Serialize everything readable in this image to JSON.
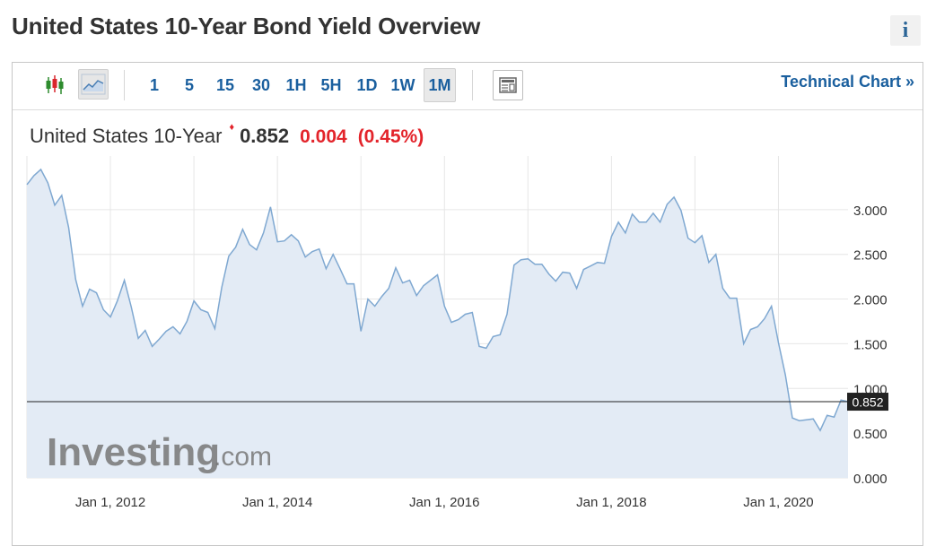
{
  "page": {
    "title": "United States 10-Year Bond Yield Overview",
    "info_icon": "i"
  },
  "toolbar": {
    "icons": [
      "candlestick-icon",
      "area-chart-icon",
      "news-panel-icon"
    ],
    "intervals": [
      "1",
      "5",
      "15",
      "30",
      "1H",
      "5H",
      "1D",
      "1W",
      "1M"
    ],
    "active_interval": "1M",
    "technical_chart_label": "Technical Chart »"
  },
  "quote": {
    "name": "United States 10-Year",
    "price": "0.852",
    "change": "0.004",
    "change_pct": "(0.45%)",
    "direction": "down"
  },
  "watermark": {
    "brand": "Investing",
    "suffix": ".com"
  },
  "chart_data": {
    "type": "area",
    "series": [
      {
        "values": [
          {
            "x": "2011-01",
            "y": 3.28
          },
          {
            "x": "2011-02",
            "y": 3.38
          },
          {
            "x": "2011-03",
            "y": 3.45
          },
          {
            "x": "2011-04",
            "y": 3.3
          },
          {
            "x": "2011-05",
            "y": 3.05
          },
          {
            "x": "2011-06",
            "y": 3.16
          },
          {
            "x": "2011-07",
            "y": 2.8
          },
          {
            "x": "2011-08",
            "y": 2.22
          },
          {
            "x": "2011-09",
            "y": 1.92
          },
          {
            "x": "2011-10",
            "y": 2.11
          },
          {
            "x": "2011-11",
            "y": 2.07
          },
          {
            "x": "2011-12",
            "y": 1.88
          },
          {
            "x": "2012-01",
            "y": 1.8
          },
          {
            "x": "2012-02",
            "y": 1.98
          },
          {
            "x": "2012-03",
            "y": 2.21
          },
          {
            "x": "2012-04",
            "y": 1.91
          },
          {
            "x": "2012-05",
            "y": 1.56
          },
          {
            "x": "2012-06",
            "y": 1.65
          },
          {
            "x": "2012-07",
            "y": 1.47
          },
          {
            "x": "2012-08",
            "y": 1.55
          },
          {
            "x": "2012-09",
            "y": 1.64
          },
          {
            "x": "2012-10",
            "y": 1.69
          },
          {
            "x": "2012-11",
            "y": 1.61
          },
          {
            "x": "2012-12",
            "y": 1.75
          },
          {
            "x": "2013-01",
            "y": 1.98
          },
          {
            "x": "2013-02",
            "y": 1.88
          },
          {
            "x": "2013-03",
            "y": 1.85
          },
          {
            "x": "2013-04",
            "y": 1.67
          },
          {
            "x": "2013-05",
            "y": 2.13
          },
          {
            "x": "2013-06",
            "y": 2.48
          },
          {
            "x": "2013-07",
            "y": 2.58
          },
          {
            "x": "2013-08",
            "y": 2.78
          },
          {
            "x": "2013-09",
            "y": 2.61
          },
          {
            "x": "2013-10",
            "y": 2.55
          },
          {
            "x": "2013-11",
            "y": 2.74
          },
          {
            "x": "2013-12",
            "y": 3.03
          },
          {
            "x": "2014-01",
            "y": 2.64
          },
          {
            "x": "2014-02",
            "y": 2.65
          },
          {
            "x": "2014-03",
            "y": 2.72
          },
          {
            "x": "2014-04",
            "y": 2.65
          },
          {
            "x": "2014-05",
            "y": 2.47
          },
          {
            "x": "2014-06",
            "y": 2.53
          },
          {
            "x": "2014-07",
            "y": 2.56
          },
          {
            "x": "2014-08",
            "y": 2.34
          },
          {
            "x": "2014-09",
            "y": 2.5
          },
          {
            "x": "2014-10",
            "y": 2.34
          },
          {
            "x": "2014-11",
            "y": 2.17
          },
          {
            "x": "2014-12",
            "y": 2.17
          },
          {
            "x": "2015-01",
            "y": 1.64
          },
          {
            "x": "2015-02",
            "y": 2.0
          },
          {
            "x": "2015-03",
            "y": 1.92
          },
          {
            "x": "2015-04",
            "y": 2.03
          },
          {
            "x": "2015-05",
            "y": 2.12
          },
          {
            "x": "2015-06",
            "y": 2.35
          },
          {
            "x": "2015-07",
            "y": 2.18
          },
          {
            "x": "2015-08",
            "y": 2.21
          },
          {
            "x": "2015-09",
            "y": 2.04
          },
          {
            "x": "2015-10",
            "y": 2.15
          },
          {
            "x": "2015-11",
            "y": 2.21
          },
          {
            "x": "2015-12",
            "y": 2.27
          },
          {
            "x": "2016-01",
            "y": 1.92
          },
          {
            "x": "2016-02",
            "y": 1.74
          },
          {
            "x": "2016-03",
            "y": 1.77
          },
          {
            "x": "2016-04",
            "y": 1.83
          },
          {
            "x": "2016-05",
            "y": 1.85
          },
          {
            "x": "2016-06",
            "y": 1.47
          },
          {
            "x": "2016-07",
            "y": 1.45
          },
          {
            "x": "2016-08",
            "y": 1.58
          },
          {
            "x": "2016-09",
            "y": 1.6
          },
          {
            "x": "2016-10",
            "y": 1.83
          },
          {
            "x": "2016-11",
            "y": 2.38
          },
          {
            "x": "2016-12",
            "y": 2.44
          },
          {
            "x": "2017-01",
            "y": 2.45
          },
          {
            "x": "2017-02",
            "y": 2.39
          },
          {
            "x": "2017-03",
            "y": 2.39
          },
          {
            "x": "2017-04",
            "y": 2.28
          },
          {
            "x": "2017-05",
            "y": 2.2
          },
          {
            "x": "2017-06",
            "y": 2.3
          },
          {
            "x": "2017-07",
            "y": 2.29
          },
          {
            "x": "2017-08",
            "y": 2.12
          },
          {
            "x": "2017-09",
            "y": 2.33
          },
          {
            "x": "2017-10",
            "y": 2.37
          },
          {
            "x": "2017-11",
            "y": 2.41
          },
          {
            "x": "2017-12",
            "y": 2.4
          },
          {
            "x": "2018-01",
            "y": 2.7
          },
          {
            "x": "2018-02",
            "y": 2.86
          },
          {
            "x": "2018-03",
            "y": 2.74
          },
          {
            "x": "2018-04",
            "y": 2.95
          },
          {
            "x": "2018-05",
            "y": 2.86
          },
          {
            "x": "2018-06",
            "y": 2.86
          },
          {
            "x": "2018-07",
            "y": 2.96
          },
          {
            "x": "2018-08",
            "y": 2.86
          },
          {
            "x": "2018-09",
            "y": 3.06
          },
          {
            "x": "2018-10",
            "y": 3.14
          },
          {
            "x": "2018-11",
            "y": 2.99
          },
          {
            "x": "2018-12",
            "y": 2.68
          },
          {
            "x": "2019-01",
            "y": 2.63
          },
          {
            "x": "2019-02",
            "y": 2.71
          },
          {
            "x": "2019-03",
            "y": 2.41
          },
          {
            "x": "2019-04",
            "y": 2.5
          },
          {
            "x": "2019-05",
            "y": 2.12
          },
          {
            "x": "2019-06",
            "y": 2.01
          },
          {
            "x": "2019-07",
            "y": 2.01
          },
          {
            "x": "2019-08",
            "y": 1.5
          },
          {
            "x": "2019-09",
            "y": 1.66
          },
          {
            "x": "2019-10",
            "y": 1.69
          },
          {
            "x": "2019-11",
            "y": 1.78
          },
          {
            "x": "2019-12",
            "y": 1.92
          },
          {
            "x": "2020-01",
            "y": 1.51
          },
          {
            "x": "2020-02",
            "y": 1.15
          },
          {
            "x": "2020-03",
            "y": 0.67
          },
          {
            "x": "2020-04",
            "y": 0.64
          },
          {
            "x": "2020-05",
            "y": 0.65
          },
          {
            "x": "2020-06",
            "y": 0.66
          },
          {
            "x": "2020-07",
            "y": 0.53
          },
          {
            "x": "2020-08",
            "y": 0.7
          },
          {
            "x": "2020-09",
            "y": 0.68
          },
          {
            "x": "2020-10",
            "y": 0.87
          },
          {
            "x": "2020-11",
            "y": 0.852
          }
        ]
      }
    ],
    "x_tick_labels": [
      "Jan 1, 2012",
      "Jan 1, 2014",
      "Jan 1, 2016",
      "Jan 1, 2018",
      "Jan 1, 2020"
    ],
    "x_tick_dates": [
      "2012-01",
      "2014-01",
      "2016-01",
      "2018-01",
      "2020-01"
    ],
    "y_tick_labels": [
      "0.000",
      "0.500",
      "1.000",
      "1.500",
      "2.000",
      "2.500",
      "3.000"
    ],
    "y_ticks": [
      0,
      0.5,
      1.0,
      1.5,
      2.0,
      2.5,
      3.0
    ],
    "ylim": [
      0,
      3.6
    ],
    "xlim": [
      "2011-01",
      "2020-11"
    ],
    "current_value": 0.852,
    "current_value_label": "0.852",
    "grid": true,
    "colors": {
      "line": "#7fa8d1",
      "fill": "#e3ebf5",
      "grid": "#e6e6e6",
      "price_line": "#222222",
      "price_label_bg": "#222222",
      "watermark": "#777777"
    }
  }
}
